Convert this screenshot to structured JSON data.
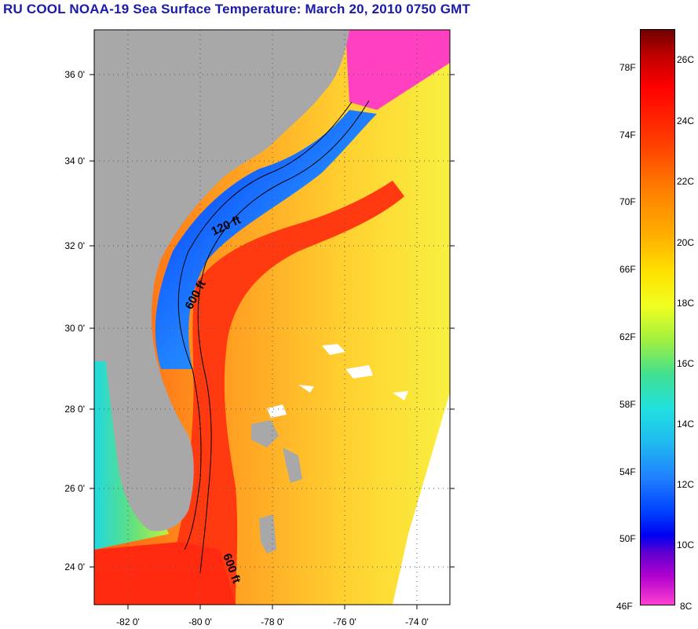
{
  "title": "RU COOL  NOAA-19  Sea Surface Temperature:  March 20, 2010 0750 GMT",
  "map": {
    "lat_labels": [
      "36 0'",
      "34 0'",
      "32 0'",
      "30 0'",
      "28 0'",
      "26 0'",
      "24 0'"
    ],
    "lon_labels": [
      "-82 0'",
      "-80 0'",
      "-78 0'",
      "-76 0'",
      "-74 0'"
    ],
    "depth_labels": [
      "120 ft",
      "600 ft",
      "600 ft"
    ]
  },
  "colorbar": {
    "fahrenheit": [
      "78F",
      "74F",
      "70F",
      "66F",
      "62F",
      "58F",
      "54F",
      "50F",
      "46F"
    ],
    "celsius": [
      "26C",
      "24C",
      "22C",
      "20C",
      "18C",
      "16C",
      "14C",
      "12C",
      "10C",
      "8C"
    ]
  },
  "colors": {
    "land": "#a8a8a8",
    "title": "#1a1aa8",
    "gulf_stream": "#ff3a10",
    "shelf_cold": "#1850ff"
  }
}
